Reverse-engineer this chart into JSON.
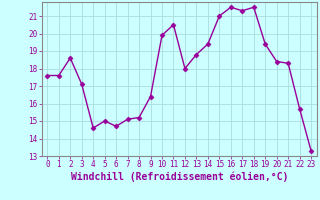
{
  "x": [
    0,
    1,
    2,
    3,
    4,
    5,
    6,
    7,
    8,
    9,
    10,
    11,
    12,
    13,
    14,
    15,
    16,
    17,
    18,
    19,
    20,
    21,
    22,
    23
  ],
  "y": [
    17.6,
    17.6,
    18.6,
    17.1,
    14.6,
    15.0,
    14.7,
    15.1,
    15.2,
    16.4,
    19.9,
    20.5,
    18.0,
    18.8,
    19.4,
    21.0,
    21.5,
    21.3,
    21.5,
    19.4,
    18.4,
    18.3,
    15.7,
    13.3
  ],
  "line_color": "#990099",
  "marker": "D",
  "marker_size": 2.5,
  "bg_color": "#ccffff",
  "grid_color": "#aadddd",
  "xlabel": "Windchill (Refroidissement éolien,°C)",
  "ylabel": "",
  "ylim": [
    13,
    21.8
  ],
  "yticks": [
    13,
    14,
    15,
    16,
    17,
    18,
    19,
    20,
    21
  ],
  "xlim": [
    -0.5,
    23.5
  ],
  "xticks": [
    0,
    1,
    2,
    3,
    4,
    5,
    6,
    7,
    8,
    9,
    10,
    11,
    12,
    13,
    14,
    15,
    16,
    17,
    18,
    19,
    20,
    21,
    22,
    23
  ],
  "xtick_labels": [
    "0",
    "1",
    "2",
    "3",
    "4",
    "5",
    "6",
    "7",
    "8",
    "9",
    "10",
    "11",
    "12",
    "13",
    "14",
    "15",
    "16",
    "17",
    "18",
    "19",
    "20",
    "21",
    "22",
    "23"
  ],
  "font_color": "#990099",
  "tick_fontsize": 5.5,
  "xlabel_fontsize": 7.0,
  "linewidth": 1.0
}
